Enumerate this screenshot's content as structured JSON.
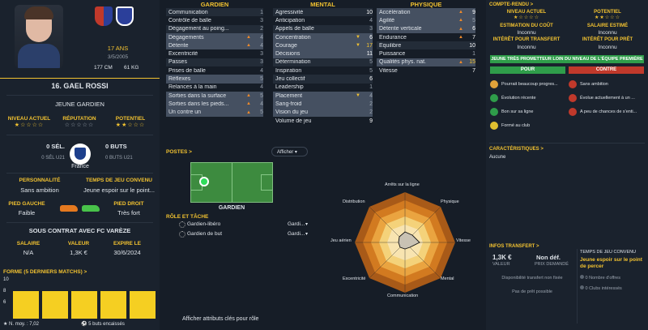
{
  "player": {
    "age": "17 ANS",
    "dob": "3/5/2005",
    "height": "177 CM",
    "weight": "61 KG",
    "name": "16. GAEL ROSSI",
    "role": "JEUNE GARDIEN",
    "ratings": [
      {
        "label": "NIVEAU ACTUEL",
        "stars": "★☆☆☆☆"
      },
      {
        "label": "RÉPUTATION",
        "stars": "☆☆☆☆☆"
      },
      {
        "label": "POTENTIEL",
        "stars": "★★☆☆☆"
      }
    ],
    "caps": "0 SÉL.",
    "caps_sub": "0 SÉL U21",
    "goals": "0 BUTS",
    "goals_sub": "0 BUTS U21",
    "nation": "France",
    "personality_label": "PERSONNALITÉ",
    "personality": "Sans ambition",
    "playtime_label": "TEMPS DE JEU CONVENU",
    "playtime": "Jeune espoir sur le point...",
    "left_foot_label": "PIED GAUCHE",
    "left_foot": "Faible",
    "right_foot_label": "PIED DROIT",
    "right_foot": "Très fort",
    "contract_title": "SOUS CONTRAT AVEC FC VARÈZE",
    "salary_label": "SALAIRE",
    "salary": "N/A",
    "value_label": "VALEUR",
    "value": "1,3K €",
    "expiry_label": "EXPIRE LE",
    "expiry": "30/6/2024",
    "form_title": "FORME (5 DERNIERS MATCHS) >",
    "form_axis": [
      "10",
      "8",
      "6"
    ],
    "form_values": [
      7.1,
      7.0,
      7.0,
      7.0,
      7.0
    ],
    "avg_label": "N. moy. : 7,02",
    "conceded": "5 buts encaissés"
  },
  "attributes": {
    "gk_title": "GARDIEN",
    "mental_title": "MENTAL",
    "phys_title": "PHYSIQUE",
    "gk": [
      {
        "name": "Communication",
        "value": "1"
      },
      {
        "name": "Contrôle de balle",
        "value": "3"
      },
      {
        "name": "Dégagement au poing...",
        "value": "2"
      },
      {
        "name": "Dégagements",
        "value": "4"
      },
      {
        "name": "Détente",
        "value": "4"
      },
      {
        "name": "Excentricité",
        "value": "3"
      },
      {
        "name": "Passes",
        "value": "3"
      },
      {
        "name": "Prises de balle",
        "value": "4"
      },
      {
        "name": "Réflexes",
        "value": "5"
      },
      {
        "name": "Relances à la main",
        "value": "4"
      },
      {
        "name": "Sorties dans la surface",
        "value": "5"
      },
      {
        "name": "Sorties dans les pieds...",
        "value": "4"
      },
      {
        "name": "Un contre un",
        "value": "5"
      }
    ],
    "mental": [
      {
        "name": "Agressivité",
        "value": "10"
      },
      {
        "name": "Anticipation",
        "value": "4"
      },
      {
        "name": "Appels de balle",
        "value": "3"
      },
      {
        "name": "Concentration",
        "value": "6"
      },
      {
        "name": "Courage",
        "value": "17"
      },
      {
        "name": "Décisions",
        "value": "11"
      },
      {
        "name": "Détermination",
        "value": "5"
      },
      {
        "name": "Inspiration",
        "value": "5"
      },
      {
        "name": "Jeu collectif",
        "value": "6"
      },
      {
        "name": "Leadership",
        "value": "1"
      },
      {
        "name": "Placement",
        "value": "4"
      },
      {
        "name": "Sang-froid",
        "value": "2"
      },
      {
        "name": "Vision du jeu",
        "value": "2"
      },
      {
        "name": "Volume de jeu",
        "value": "9"
      }
    ],
    "phys": [
      {
        "name": "Accélération",
        "value": "9"
      },
      {
        "name": "Agilité",
        "value": "5"
      },
      {
        "name": "Détente verticale",
        "value": "6"
      },
      {
        "name": "Endurance",
        "value": "7"
      },
      {
        "name": "Équilibre",
        "value": "10"
      },
      {
        "name": "Puissance",
        "value": "1"
      },
      {
        "name": "Qualités phys. nat.",
        "value": "15"
      },
      {
        "name": "Vitesse",
        "value": "7"
      }
    ]
  },
  "positions": {
    "title": "POSTES >",
    "show_label": "Afficher",
    "pos_name": "GARDIEN",
    "roles_title": "RÔLE ET TÂCHE",
    "roles": [
      {
        "name": "Gardien-libéro",
        "duty": "Gardi..."
      },
      {
        "name": "Gardien de but",
        "duty": "Gardi..."
      }
    ],
    "footer_link": "Afficher attributs clés pour rôle"
  },
  "radar": {
    "labels": [
      "Arrêts sur la ligne",
      "Physique",
      "Vitesse",
      "Mental",
      "Communication",
      "Excentricité",
      "Jeu aérien",
      "Distribution"
    ]
  },
  "scout": {
    "title": "COMPTE-RENDU >",
    "current_label": "NIVEAU ACTUEL",
    "potential_label": "POTENTIEL",
    "cost_label": "ESTIMATION DU COÛT",
    "cost": "Inconnu",
    "wage_label": "SALAIRE ESTIMÉ",
    "wage": "Inconnu",
    "transfer_label": "INTÉRÊT POUR TRANSFERT",
    "transfer": "Inconnu",
    "loan_label": "INTÉRÊT POUR PRÊT",
    "loan": "Inconnu",
    "banner": "JEUNE TRÈS PROMETTEUR LOIN DU NIVEAU DE L'ÉQUIPE PREMIÈRE",
    "pro": "POUR",
    "con": "CONTRE",
    "pros": [
      "Pourrait beaucoup progres...",
      "Évolution récente",
      "Bon sur sa ligne",
      "Formé au club"
    ],
    "cons": [
      "Sans ambition",
      "Évolue actuellement à un ...",
      "A peu de chances de s'enti..."
    ],
    "traits_title": "CARACTÉRISTIQUES >",
    "traits": "Aucune",
    "transfer_info_title": "INFOS TRANSFERT >",
    "price": "1,3K €",
    "price_label": "VALEUR",
    "asking": "Non déf.",
    "asking_label": "PRIX DEMANDÉ",
    "availability": "Disponibilité transfert non fixée",
    "loan_status": "Pas de prêt possible",
    "contract_time_label": "TEMPS DE JEU CONVENU",
    "contract_time": "Jeune espoir sur le point de percer",
    "offers": "0 Nombre d'offres",
    "clubs": "0 Clubs intéressés"
  },
  "colors": {
    "accent": "#f2c230",
    "green": "#2f9d4a",
    "red": "#c0392b",
    "form_bar": "#f5cf22"
  }
}
